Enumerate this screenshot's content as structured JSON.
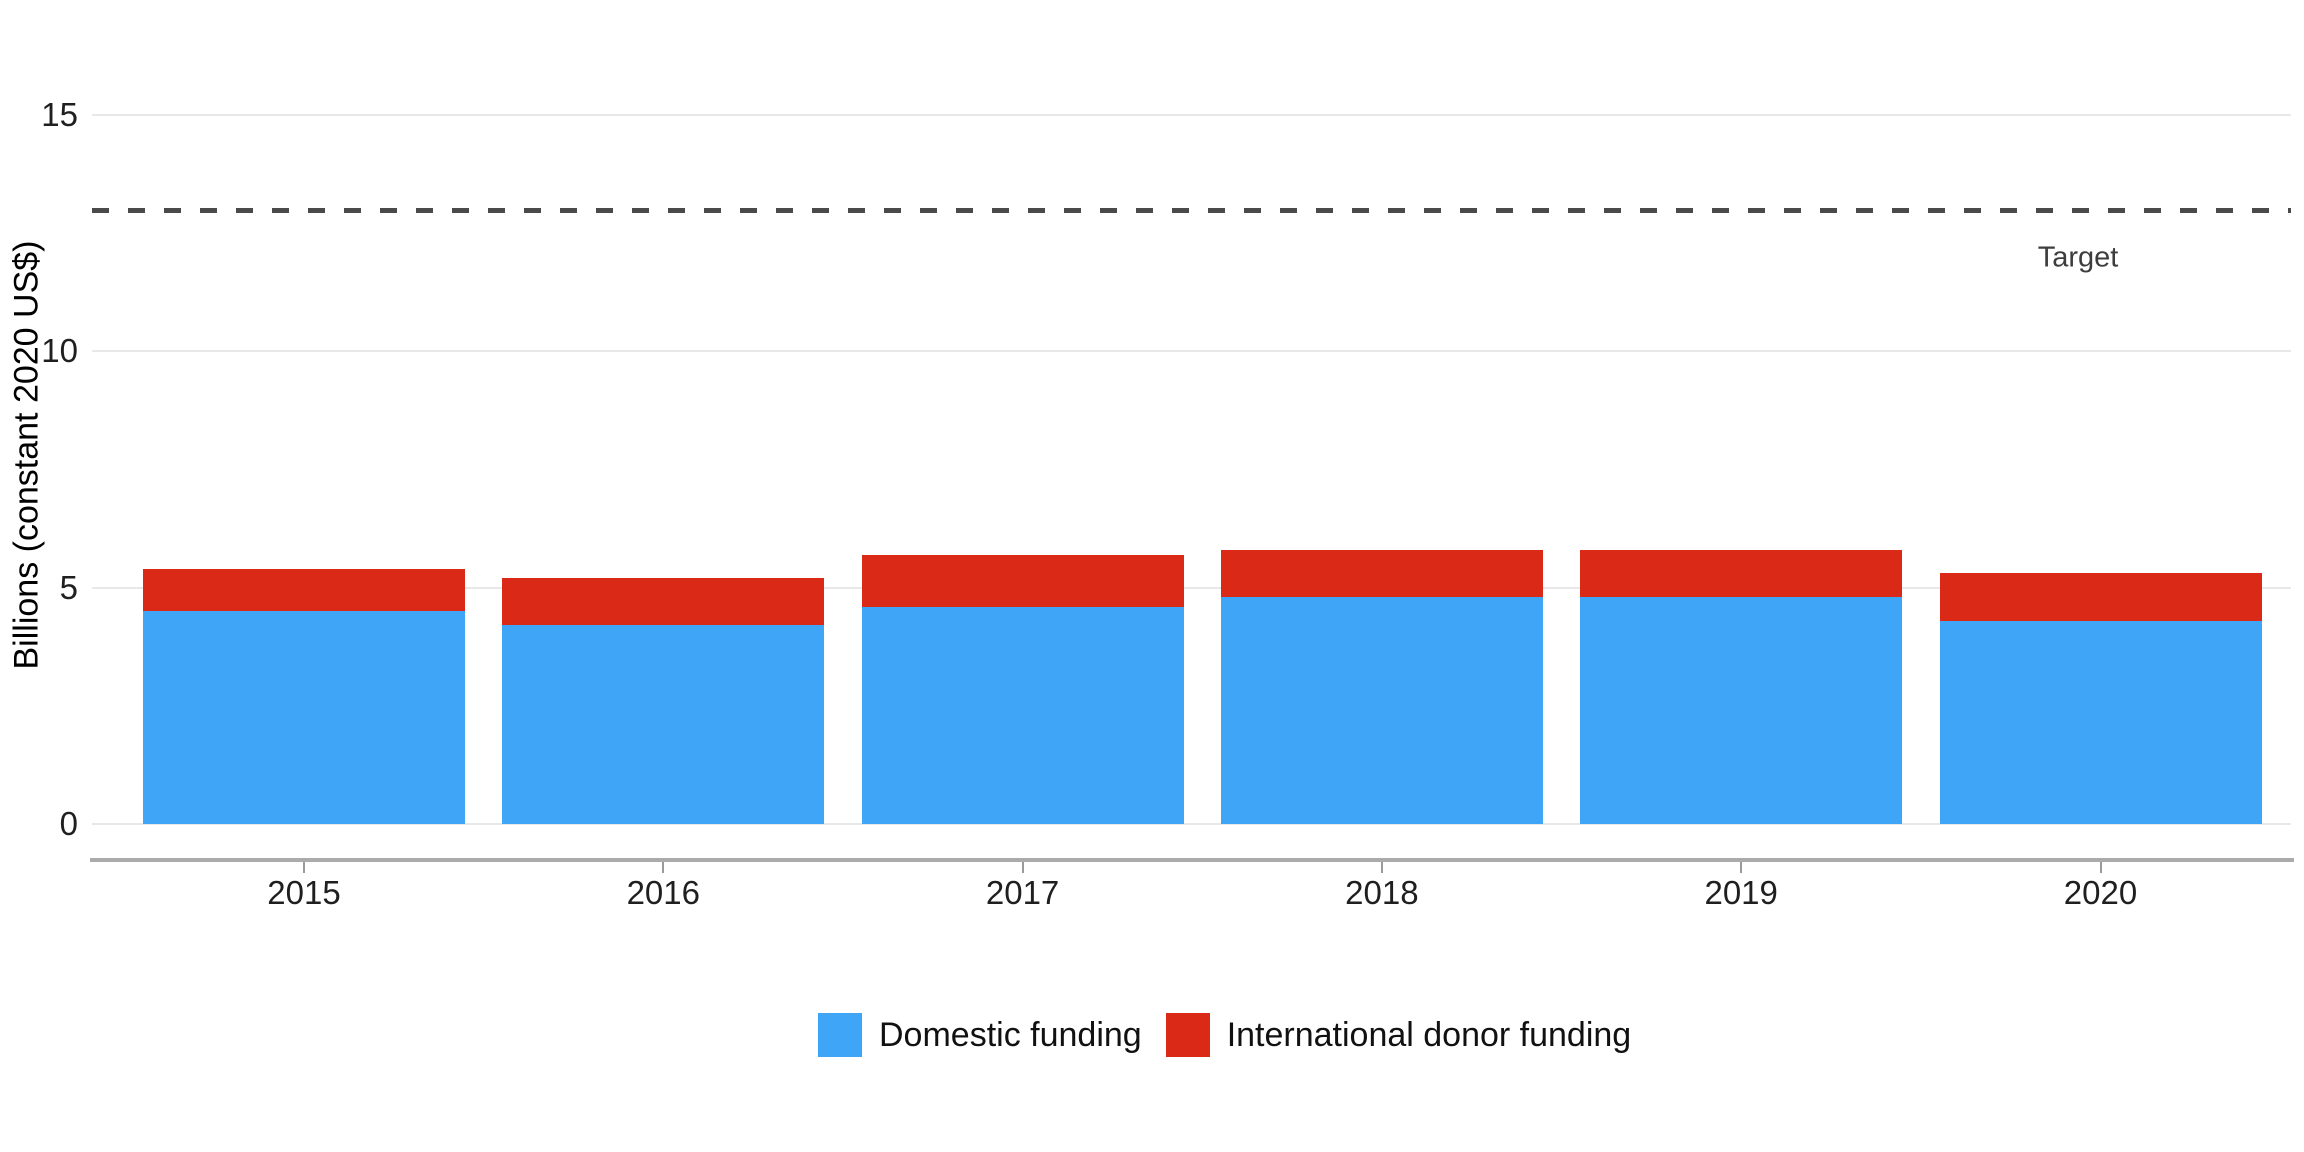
{
  "chart_data": {
    "type": "bar",
    "stacked": true,
    "title": "",
    "categories": [
      "2015",
      "2016",
      "2017",
      "2018",
      "2019",
      "2020"
    ],
    "series": [
      {
        "name": "Domestic funding",
        "color": "#3fa5f6",
        "values": [
          4.5,
          4.2,
          4.6,
          4.8,
          4.8,
          4.3
        ]
      },
      {
        "name": "International donor funding",
        "color": "#da2917",
        "values": [
          0.9,
          1.0,
          1.1,
          1.0,
          1.0,
          1.0
        ]
      }
    ],
    "xlabel": "",
    "ylabel": "Billions (constant 2020 US$)",
    "yticks": [
      0,
      5,
      10,
      15
    ],
    "ylim": [
      0,
      16.8
    ],
    "grid": "horizontal-only",
    "legend_position": "bottom",
    "target_line": {
      "value": 13,
      "label": "Target",
      "style": "dashed",
      "color": "#4a4a4a"
    }
  }
}
